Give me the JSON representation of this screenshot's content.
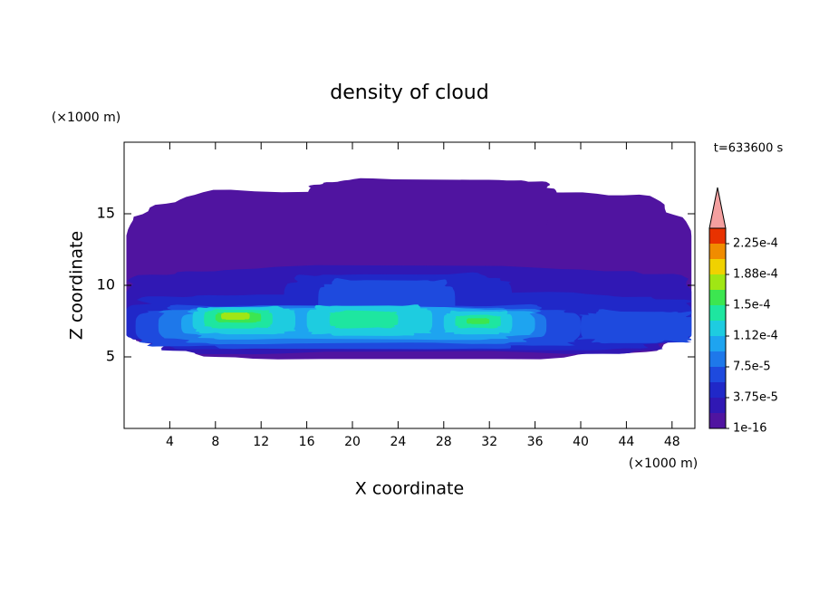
{
  "chart_data": {
    "type": "contour",
    "title": "density of cloud",
    "x_label": "X coordinate",
    "y_label": "Z coordinate",
    "x_unit": "(×1000 m)",
    "y_unit": "(×1000 m)",
    "time_label": "t=633600 s",
    "xlim": [
      0,
      50
    ],
    "xticks": [
      4,
      8,
      12,
      16,
      20,
      24,
      28,
      32,
      36,
      40,
      44,
      48
    ],
    "ylim": [
      0,
      20
    ],
    "yticks": [
      5,
      10,
      15
    ],
    "colorbar": {
      "clim": [
        1e-16,
        0.00024375
      ],
      "levels": [
        1e-16,
        1.875e-05,
        3.75e-05,
        5.625e-05,
        7.5e-05,
        9.375e-05,
        0.0001125,
        0.00013125,
        0.00015,
        0.00016875,
        0.0001875,
        0.00020625,
        0.000225
      ],
      "colors": [
        "#5014a0",
        "#3018b4",
        "#2028c8",
        "#1e4ade",
        "#1e78ea",
        "#1ea4f0",
        "#1ecce0",
        "#1ee6a0",
        "#3ce650",
        "#a0e614",
        "#f0d200",
        "#f08c00",
        "#e83200"
      ],
      "over_color": "#f4a0a0",
      "ticks": [
        {
          "value": 1e-16,
          "label": "1e-16"
        },
        {
          "value": 3.75e-05,
          "label": "3.75e-5"
        },
        {
          "value": 7.5e-05,
          "label": "7.5e-5"
        },
        {
          "value": 0.0001125,
          "label": "1.12e-4"
        },
        {
          "value": 0.00015,
          "label": "1.5e-4"
        },
        {
          "value": 0.0001875,
          "label": "1.88e-4"
        },
        {
          "value": 0.000225,
          "label": "2.25e-4"
        }
      ]
    }
  }
}
